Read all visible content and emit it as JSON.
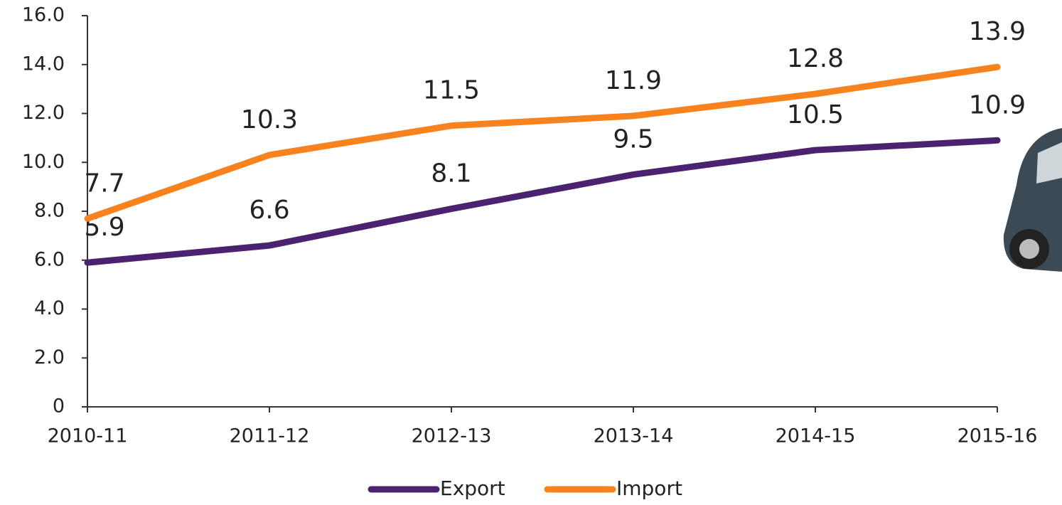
{
  "chart_data": {
    "type": "line",
    "categories": [
      "2010-11",
      "2011-12",
      "2012-13",
      "2013-14",
      "2014-15",
      "2015-16"
    ],
    "series": [
      {
        "name": "Export",
        "color": "#4b2270",
        "values": [
          5.9,
          6.6,
          8.1,
          9.5,
          10.5,
          10.9
        ]
      },
      {
        "name": "Import",
        "color": "#f7821e",
        "values": [
          7.7,
          10.3,
          11.5,
          11.9,
          12.8,
          13.9
        ]
      }
    ],
    "ylim": [
      0,
      16
    ],
    "yticks": [
      0,
      {
        "value": 2,
        "label": "2.0"
      },
      {
        "value": 4,
        "label": "4.0"
      },
      {
        "value": 6,
        "label": "6.0"
      },
      {
        "value": 8,
        "label": "8.0"
      },
      {
        "value": 10,
        "label": "10.0"
      },
      {
        "value": 12,
        "label": "12.0"
      },
      {
        "value": 14,
        "label": "14.0"
      },
      {
        "value": 16,
        "label": "16.0"
      }
    ],
    "grid": false,
    "legend": "bottom"
  }
}
